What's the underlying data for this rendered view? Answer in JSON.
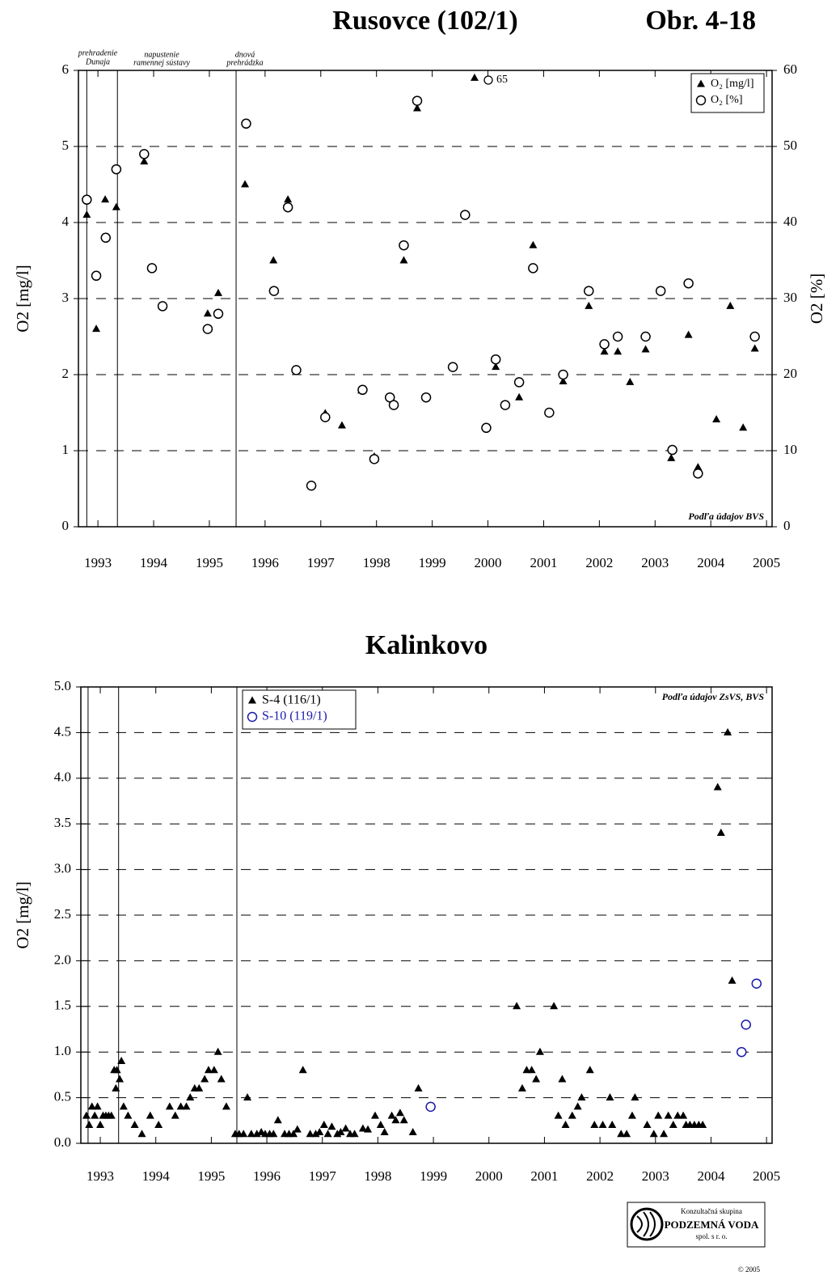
{
  "figure_label": "Obr. 4-18",
  "chart_data": [
    {
      "type": "scatter",
      "title": "Rusovce (102/1)",
      "ylabel": "O2 [mg/l]",
      "y2label": "O2 [%]",
      "xlim": [
        1992.65,
        2005.1
      ],
      "xticks": [
        1993,
        1994,
        1995,
        1996,
        1997,
        1998,
        1999,
        2000,
        2001,
        2002,
        2003,
        2004,
        2005
      ],
      "ylim": [
        0,
        6
      ],
      "yticks": [
        0,
        1,
        2,
        3,
        4,
        5,
        6
      ],
      "y2lim": [
        0,
        60
      ],
      "y2ticks": [
        0,
        10,
        20,
        30,
        40,
        50,
        60
      ],
      "grid": true,
      "legend": "upper right",
      "vlines": [
        1992.8,
        1993.35,
        1995.48
      ],
      "annotations": [
        "prehradenie",
        "Dunaja",
        "napustenie",
        "ramennej sústavy",
        "dnová",
        "prehrádzka",
        "65",
        "Podľa údajov BVS"
      ],
      "series": [
        {
          "name": "O₂ [mg/l]",
          "marker": "triangle",
          "color": "#000000",
          "x": [
            1992.8,
            1992.97,
            1993.13,
            1993.33,
            1993.83,
            1993.97,
            1994.16,
            1994.97,
            1995.16,
            1995.64,
            1996.15,
            1996.41,
            1996.56,
            1996.82,
            1997.08,
            1997.38,
            1997.73,
            1997.96,
            1998.25,
            1998.31,
            1998.49,
            1998.73,
            1998.89,
            1999.76,
            2000.14,
            2000.31,
            2000.56,
            2000.81,
            2001.1,
            2001.35,
            2001.81,
            2002.09,
            2002.33,
            2002.55,
            2002.83,
            2003.1,
            2003.29,
            2003.6,
            2003.77,
            2004.1,
            2004.35,
            2004.58,
            2004.79
          ],
          "values": [
            4.1,
            2.6,
            4.3,
            4.2,
            4.8,
            3.4,
            2.9,
            2.8,
            3.07,
            4.5,
            3.5,
            4.3,
            2.07,
            0.55,
            1.49,
            1.33,
            1.79,
            0.92,
            1.71,
            1.61,
            3.5,
            5.5,
            1.7,
            5.9,
            2.1,
            1.6,
            1.7,
            3.7,
            1.5,
            1.91,
            2.9,
            2.3,
            2.3,
            1.9,
            2.33,
            3.1,
            0.9,
            2.52,
            0.78,
            1.41,
            2.9,
            1.3,
            2.34
          ]
        },
        {
          "name": "O₂ [%]",
          "marker": "circle",
          "color": "#000000",
          "axis": "y2",
          "x": [
            1992.8,
            1992.97,
            1993.14,
            1993.33,
            1993.83,
            1993.97,
            1994.16,
            1994.97,
            1995.16,
            1995.66,
            1996.16,
            1996.41,
            1996.56,
            1996.83,
            1997.08,
            1997.75,
            1997.96,
            1998.24,
            1998.31,
            1998.49,
            1998.73,
            1998.89,
            1999.37,
            1999.59,
            1999.97,
            2000.14,
            2000.31,
            2000.56,
            2000.81,
            2001.1,
            2001.35,
            2001.81,
            2002.09,
            2002.33,
            2002.83,
            2003.1,
            2003.31,
            2003.6,
            2003.77,
            2004.79
          ],
          "values": [
            43,
            33,
            38,
            47,
            49,
            34,
            29,
            26,
            28,
            53,
            31,
            42,
            20.6,
            5.4,
            14.4,
            18,
            8.9,
            17,
            16,
            37,
            56,
            17,
            21,
            41,
            13,
            22,
            16,
            19,
            34,
            15,
            20,
            31,
            24,
            25,
            25,
            31,
            10.1,
            32,
            7,
            25
          ]
        }
      ]
    },
    {
      "type": "scatter",
      "title": "Kalinkovo",
      "ylabel": "O2 [mg/l]",
      "xlim": [
        1992.65,
        2005.1
      ],
      "xticks": [
        1993,
        1994,
        1995,
        1996,
        1997,
        1998,
        1999,
        2000,
        2001,
        2002,
        2003,
        2004,
        2005
      ],
      "ylim": [
        0,
        5
      ],
      "yticks": [
        {
          "value": 0,
          "label": "0.0"
        },
        0.5,
        {
          "value": 1,
          "label": "1.0"
        },
        1.5,
        {
          "value": 2,
          "label": "2.0"
        },
        2.5,
        {
          "value": 3,
          "label": "3.0"
        },
        3.5,
        {
          "value": 4,
          "label": "4.0"
        },
        4.5,
        {
          "value": 5,
          "label": "5.0"
        }
      ],
      "grid": true,
      "legend": "upper left",
      "vlines": [
        1992.78,
        1993.33,
        1995.46
      ],
      "annotations": [
        "Podľa údajov ZsVS, BVS"
      ],
      "series": [
        {
          "name": "S-4 (116/1)",
          "marker": "triangle",
          "color": "#000000",
          "x": [
            1992.75,
            1992.8,
            1992.85,
            1992.9,
            1992.95,
            1993.0,
            1993.05,
            1993.1,
            1993.15,
            1993.2,
            1993.25,
            1993.28,
            1993.3,
            1993.35,
            1993.38,
            1993.42,
            1993.5,
            1993.62,
            1993.75,
            1993.9,
            1994.05,
            1994.25,
            1994.35,
            1994.45,
            1994.55,
            1994.62,
            1994.7,
            1994.78,
            1994.88,
            1994.95,
            1995.05,
            1995.12,
            1995.18,
            1995.27,
            1995.43,
            1995.5,
            1995.58,
            1995.65,
            1995.72,
            1995.82,
            1995.9,
            1995.97,
            1996.05,
            1996.12,
            1996.2,
            1996.32,
            1996.4,
            1996.48,
            1996.55,
            1996.65,
            1996.78,
            1996.88,
            1996.95,
            1997.03,
            1997.1,
            1997.17,
            1997.27,
            1997.33,
            1997.42,
            1997.5,
            1997.58,
            1997.73,
            1997.82,
            1997.95,
            1998.05,
            1998.12,
            1998.25,
            1998.32,
            1998.4,
            1998.47,
            1998.63,
            1998.73,
            2000.5,
            2000.6,
            2000.68,
            2000.77,
            2000.85,
            2000.92,
            2001.17,
            2001.25,
            2001.32,
            2001.38,
            2001.5,
            2001.6,
            2001.67,
            2001.82,
            2001.9,
            2002.05,
            2002.18,
            2002.22,
            2002.38,
            2002.48,
            2002.58,
            2002.63,
            2002.85,
            2002.97,
            2003.05,
            2003.15,
            2003.23,
            2003.32,
            2003.4,
            2003.5,
            2003.55,
            2003.62,
            2003.7,
            2003.78,
            2003.85,
            2004.12,
            2004.18,
            2004.3,
            2004.38
          ],
          "values": [
            0.3,
            0.2,
            0.4,
            0.3,
            0.4,
            0.2,
            0.3,
            0.3,
            0.3,
            0.3,
            0.8,
            0.6,
            0.8,
            0.7,
            0.9,
            0.4,
            0.3,
            0.2,
            0.1,
            0.3,
            0.2,
            0.4,
            0.3,
            0.4,
            0.4,
            0.5,
            0.6,
            0.6,
            0.7,
            0.8,
            0.8,
            1.0,
            0.7,
            0.4,
            0.1,
            0.1,
            0.1,
            0.5,
            0.1,
            0.1,
            0.12,
            0.1,
            0.1,
            0.1,
            0.25,
            0.1,
            0.1,
            0.1,
            0.15,
            0.8,
            0.1,
            0.1,
            0.12,
            0.2,
            0.1,
            0.18,
            0.1,
            0.12,
            0.16,
            0.1,
            0.1,
            0.16,
            0.15,
            0.3,
            0.2,
            0.12,
            0.3,
            0.25,
            0.33,
            0.25,
            0.12,
            0.6,
            1.5,
            0.6,
            0.8,
            0.8,
            0.7,
            1.0,
            1.5,
            0.3,
            0.7,
            0.2,
            0.3,
            0.4,
            0.5,
            0.8,
            0.2,
            0.2,
            0.5,
            0.2,
            0.1,
            0.1,
            0.3,
            0.5,
            0.2,
            0.1,
            0.3,
            0.1,
            0.3,
            0.2,
            0.3,
            0.3,
            0.2,
            0.2,
            0.2,
            0.2,
            0.2,
            3.9,
            3.4,
            4.5,
            1.78
          ]
        },
        {
          "name": "S-10 (119/1)",
          "marker": "circle",
          "color": "#1a1aaa",
          "x": [
            1998.95,
            2004.55,
            2004.63,
            2004.82
          ],
          "values": [
            0.4,
            1.0,
            1.3,
            1.75
          ]
        }
      ]
    }
  ],
  "footer": {
    "group": "Konzultačná skupina",
    "company": "PODZEMNÁ VODA",
    "form": "spol. s r. o.",
    "copyright": "© 2005"
  }
}
